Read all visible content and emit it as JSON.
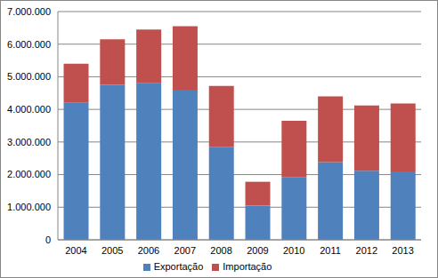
{
  "chart_data": {
    "type": "bar",
    "stacked": true,
    "grid": true,
    "legend": "bottom",
    "categories": [
      "2004",
      "2005",
      "2006",
      "2007",
      "2008",
      "2009",
      "2010",
      "2011",
      "2012",
      "2013"
    ],
    "series": [
      {
        "name": "Exportação",
        "color": "#4f81bd",
        "values": [
          4200000,
          4750000,
          4800000,
          4600000,
          2850000,
          1050000,
          1930000,
          2380000,
          2120000,
          2100000
        ]
      },
      {
        "name": "Importação",
        "color": "#c0504d",
        "values": [
          1200000,
          1400000,
          1650000,
          1950000,
          1870000,
          730000,
          1720000,
          2020000,
          2000000,
          2080000
        ]
      }
    ],
    "ylim": [
      0,
      7000000
    ],
    "yticks": [
      0,
      {
        "value": 1000000,
        "label": "1.000.000"
      },
      {
        "value": 2000000,
        "label": "2.000.000"
      },
      {
        "value": 3000000,
        "label": "3.000.000"
      },
      {
        "value": 4000000,
        "label": "4.000.000"
      },
      {
        "value": 5000000,
        "label": "5.000.000"
      },
      {
        "value": 6000000,
        "label": "6.000.000"
      },
      {
        "value": 7000000,
        "label": "7.000.000"
      }
    ]
  }
}
